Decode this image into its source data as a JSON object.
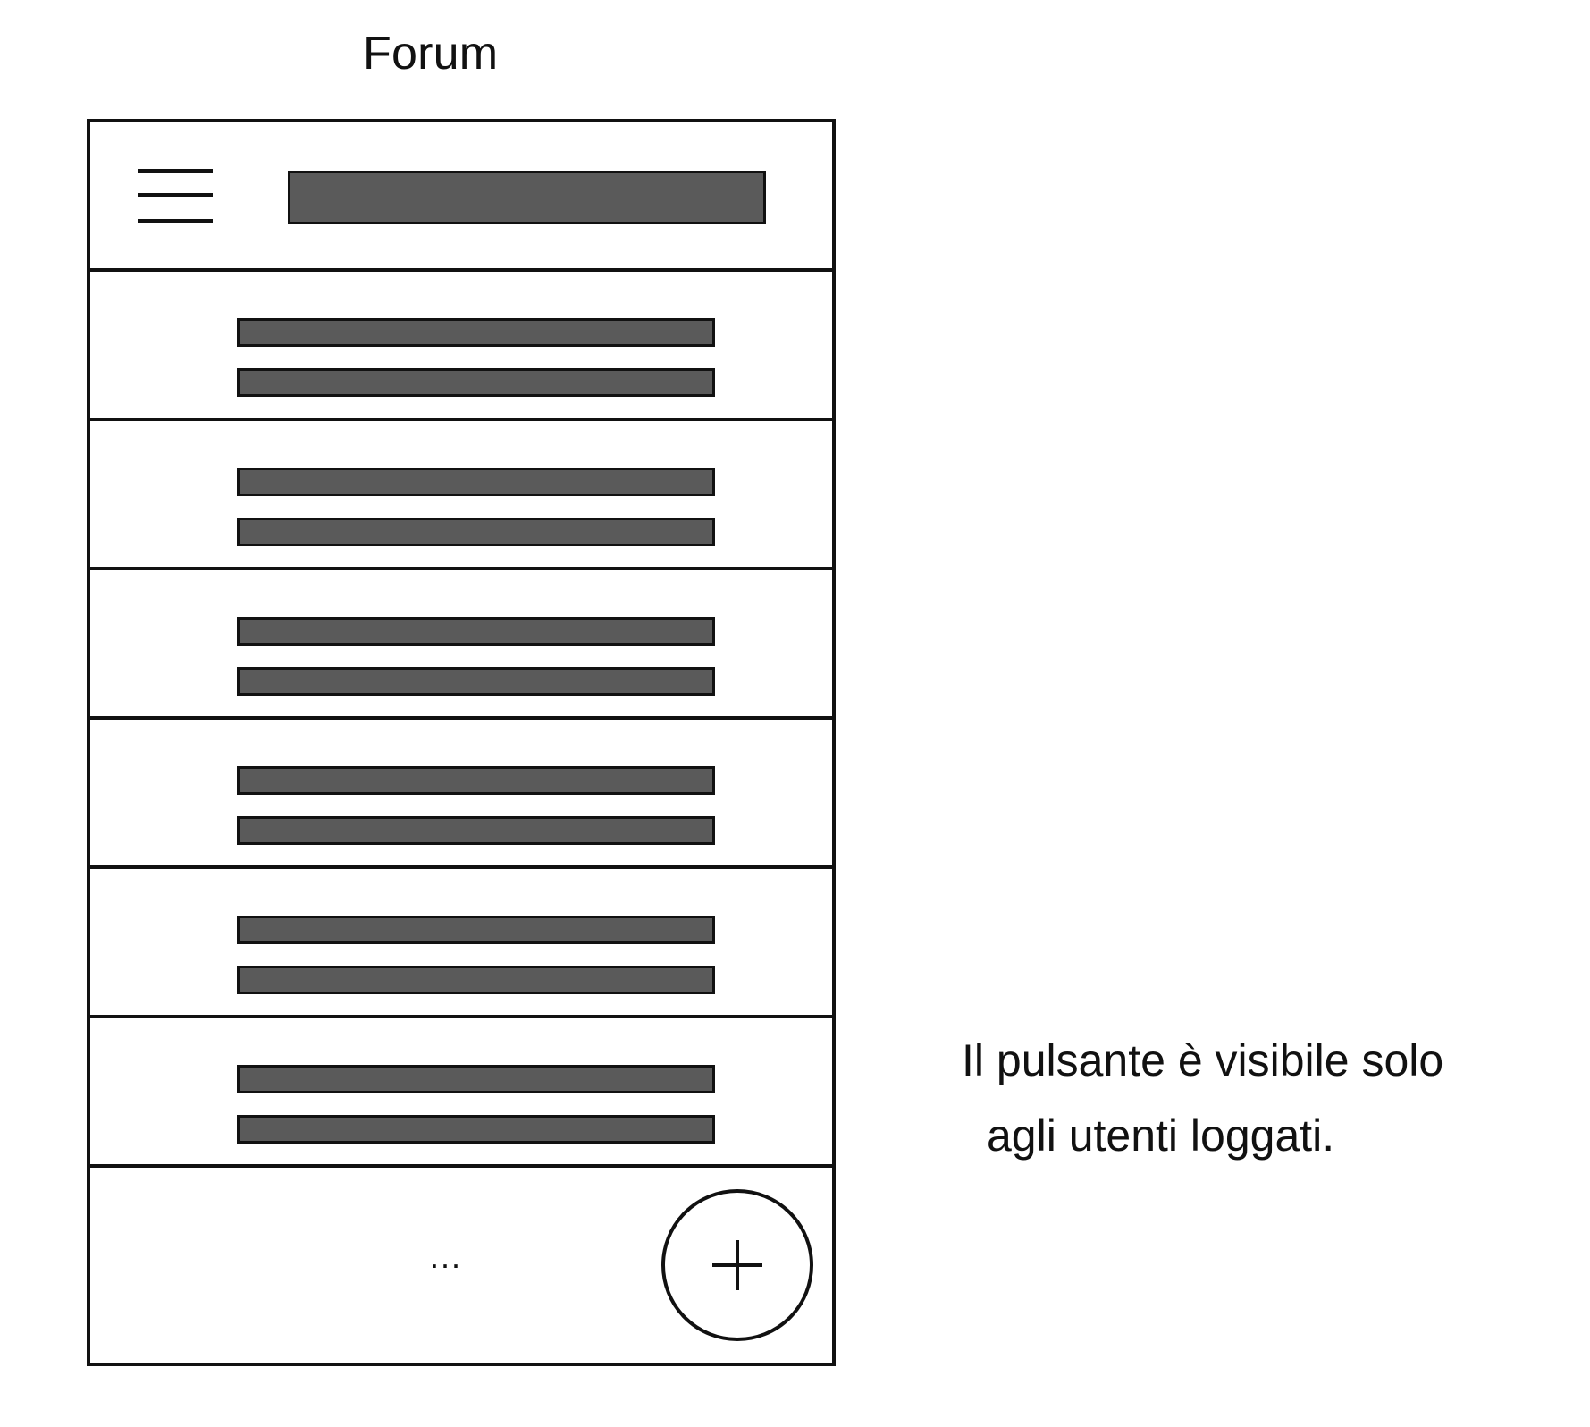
{
  "title": "Forum",
  "header": {
    "menu_icon": "hamburger-menu-icon"
  },
  "list": {
    "row_count": 6
  },
  "footer": {
    "more_label": "...",
    "add_icon": "plus-icon"
  },
  "note": {
    "line1": "Il pulsante è visibile solo",
    "line2": "agli utenti loggati."
  }
}
